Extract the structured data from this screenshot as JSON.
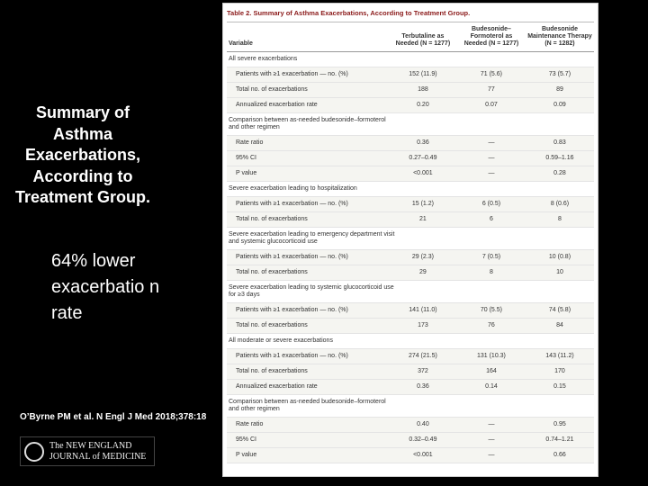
{
  "slide": {
    "heading": "Summary of Asthma Exacerbations, According to Treatment Group.",
    "highlight": "64% lower exacerbatio n rate",
    "citation": "O’Byrne PM et al. N Engl J Med 2018;378:18",
    "logo": {
      "line1": "The NEW ENGLAND",
      "line2": "JOURNAL of MEDICINE"
    }
  },
  "table": {
    "title": "Table 2. Summary of Asthma Exacerbations, According to Treatment Group.",
    "columns": [
      "Variable",
      "Terbutaline as Needed (N = 1277)",
      "Budesonide–Formoterol as Needed (N = 1277)",
      "Budesonide Maintenance Therapy (N = 1282)"
    ],
    "rows": [
      [
        "All severe exacerbations"
      ],
      [
        "Patients with ≥1 exacerbation — no. (%)",
        "152 (11.9)",
        "71 (5.6)",
        "73 (5.7)"
      ],
      [
        "Total no. of exacerbations",
        "188",
        "77",
        "89"
      ],
      [
        "Annualized exacerbation rate",
        "0.20",
        "0.07",
        "0.09"
      ],
      [
        "Comparison between as-needed budesonide–formoterol and other regimen"
      ],
      [
        "Rate ratio",
        "0.36",
        "—",
        "0.83"
      ],
      [
        "95% CI",
        "0.27–0.49",
        "—",
        "0.59–1.16"
      ],
      [
        "P value",
        "<0.001",
        "—",
        "0.28"
      ],
      [
        "Severe exacerbation leading to hospitalization"
      ],
      [
        "Patients with ≥1 exacerbation — no. (%)",
        "15 (1.2)",
        "6 (0.5)",
        "8 (0.6)"
      ],
      [
        "Total no. of exacerbations",
        "21",
        "6",
        "8"
      ],
      [
        "Severe exacerbation leading to emergency department visit and systemic glucocorticoid use"
      ],
      [
        "Patients with ≥1 exacerbation — no. (%)",
        "29 (2.3)",
        "7 (0.5)",
        "10 (0.8)"
      ],
      [
        "Total no. of exacerbations",
        "29",
        "8",
        "10"
      ],
      [
        "Severe exacerbation leading to systemic glucocorticoid use for ≥3 days"
      ],
      [
        "Patients with ≥1 exacerbation — no. (%)",
        "141 (11.0)",
        "70 (5.5)",
        "74 (5.8)"
      ],
      [
        "Total no. of exacerbations",
        "173",
        "76",
        "84"
      ],
      [
        "All moderate or severe exacerbations"
      ],
      [
        "Patients with ≥1 exacerbation — no. (%)",
        "274 (21.5)",
        "131 (10.3)",
        "143 (11.2)"
      ],
      [
        "Total no. of exacerbations",
        "372",
        "164",
        "170"
      ],
      [
        "Annualized exacerbation rate",
        "0.36",
        "0.14",
        "0.15"
      ],
      [
        "Comparison between as-needed budesonide–formoterol and other regimen"
      ],
      [
        "Rate ratio",
        "0.40",
        "—",
        "0.95"
      ],
      [
        "95% CI",
        "0.32–0.49",
        "—",
        "0.74–1.21"
      ],
      [
        "P value",
        "<0.001",
        "—",
        "0.66"
      ]
    ]
  }
}
